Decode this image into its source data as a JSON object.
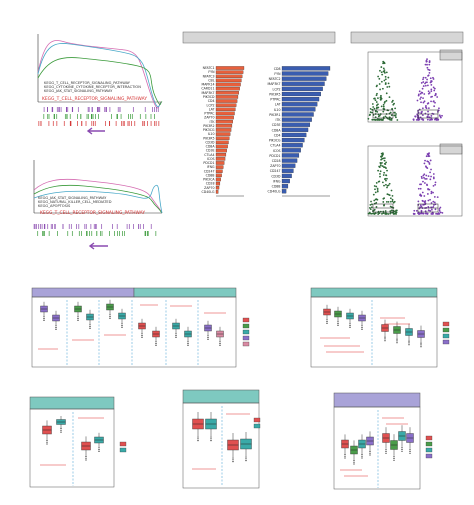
{
  "gsea_top": {
    "legend": [
      "KEGG_T_CELL_RECEPTOR_SIGNALING_PATHWAY",
      "KEGG_CYTOKINE_CYTOKINE_RECEPTOR_INTERACTION",
      "KEGG_JAK_STAT_SIGNALING_PATHWAY"
    ],
    "highlight": "KEGG_T_CELL_RECEPTOR_SIGNALING_PATHWAY"
  },
  "gsea_bottom": {
    "legend": [
      "KEGG_JAK_STAT_SIGNALING_PATHWAY",
      "KEGG_NATURAL_KILLER_CELL_MEDIATED",
      "KEGG_APOPTOSIS"
    ],
    "highlight": "KEGG_T_CELL_RECEPTOR_SIGNALING_PATHWAY"
  },
  "bar_left": {
    "genes": [
      "NFATC1",
      "FYN",
      "NFATC3",
      "CBL",
      "MAPK14",
      "CARD11",
      "MAP3K7",
      "PIK3CD",
      "CD4",
      "LCP2",
      "LAT",
      "PTPRC",
      "ZAP70",
      "ITK",
      "PIK3R2",
      "PIK3CG",
      "IL10",
      "PIK3R5",
      "CD3D",
      "CD8A",
      "CD3E",
      "CTLA4",
      "ICOS",
      "PDCD1",
      "IFNG",
      "CD247",
      "CD8B",
      "PIK3CA",
      "CD28",
      "ZAP70",
      "CD40LG"
    ],
    "color": "#e8603c"
  },
  "bar_right": {
    "genes": [
      "CD8",
      "FYN",
      "NFATC2",
      "MAP3K7",
      "LCP2",
      "PIK3R5",
      "PTPRC",
      "LAT",
      "IL10",
      "PIK3R1",
      "ITK",
      "CD3E",
      "CD8A",
      "CD4",
      "PIK3CG",
      "CTLA4",
      "ICOS",
      "PDCD1",
      "CD28",
      "ZAP70",
      "CD247",
      "CD3D",
      "IFNG",
      "CD8B",
      "CD40LG"
    ],
    "color": "#3a5db0"
  },
  "colors": {
    "green": "#2e6b38",
    "purple": "#7b3fb0",
    "header_gray": "#d6d6d6",
    "header_lavender": "#a9a3d8",
    "header_teal": "#7ec9c0",
    "box_pink": "#d98aa3",
    "box_purple": "#8a6fc9",
    "box_teal": "#3aaaa8",
    "box_green": "#4a9c4a",
    "box_red": "#e05050",
    "line_red": "#e03030",
    "dash_blue": "#5aaad8"
  }
}
